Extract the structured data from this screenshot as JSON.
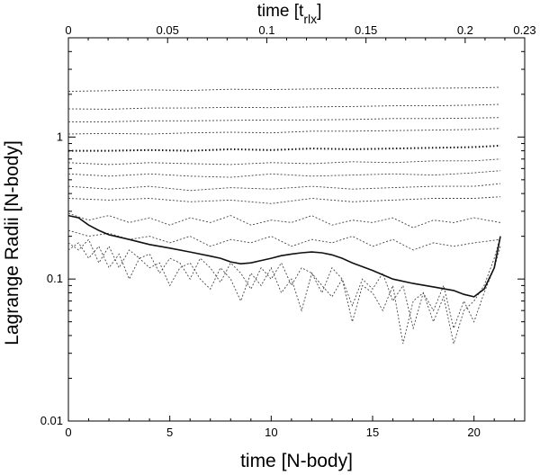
{
  "chart_data": {
    "type": "line",
    "title": "",
    "xlabel": "time [N-body]",
    "x2label_main": "time [t",
    "x2label_sub": "rlx",
    "x2label_close": "]",
    "ylabel": "Lagrange Radii [N-body]",
    "xlim": [
      0,
      22.5
    ],
    "ylim": [
      0.01,
      5
    ],
    "yscale": "log",
    "x_ticks": [
      0,
      5,
      10,
      15,
      20
    ],
    "x_tick_labels": [
      "0",
      "5",
      "10",
      "15",
      "20"
    ],
    "x2_ticks": [
      0,
      0.05,
      0.1,
      0.15,
      0.2,
      0.23
    ],
    "x2_tick_labels": [
      "0",
      "0.05",
      "0.1",
      "0.15",
      "0.2",
      "0.23"
    ],
    "x2_max": 0.23,
    "y_ticks": [
      0.01,
      0.1,
      1
    ],
    "y_tick_labels": [
      "0.01",
      "0.1",
      "1"
    ],
    "grid": false,
    "legend": "none",
    "series": [
      {
        "style": "dotted",
        "x": [
          0,
          2,
          4,
          6,
          8,
          10,
          12,
          14,
          16,
          18,
          20,
          21.3
        ],
        "y": [
          2.1,
          2.12,
          2.15,
          2.13,
          2.17,
          2.16,
          2.18,
          2.2,
          2.19,
          2.21,
          2.22,
          2.24
        ]
      },
      {
        "style": "dotted",
        "x": [
          0,
          2,
          4,
          6,
          8,
          10,
          12,
          14,
          16,
          18,
          20,
          21.3
        ],
        "y": [
          1.58,
          1.57,
          1.6,
          1.6,
          1.62,
          1.61,
          1.63,
          1.64,
          1.66,
          1.66,
          1.68,
          1.7
        ]
      },
      {
        "style": "dotted",
        "x": [
          0,
          2,
          4,
          6,
          8,
          10,
          12,
          14,
          16,
          18,
          20,
          21.3
        ],
        "y": [
          1.28,
          1.28,
          1.3,
          1.3,
          1.31,
          1.32,
          1.32,
          1.33,
          1.35,
          1.35,
          1.36,
          1.37
        ]
      },
      {
        "style": "dotted",
        "x": [
          0,
          2,
          4,
          6,
          8,
          10,
          12,
          14,
          16,
          18,
          20,
          21.3
        ],
        "y": [
          1.05,
          1.06,
          1.05,
          1.07,
          1.08,
          1.07,
          1.1,
          1.1,
          1.11,
          1.12,
          1.13,
          1.15
        ]
      },
      {
        "style": "bold-dotted",
        "x": [
          0,
          2,
          4,
          6,
          8,
          10,
          12,
          14,
          16,
          18,
          20,
          21.3
        ],
        "y": [
          0.8,
          0.8,
          0.81,
          0.8,
          0.82,
          0.81,
          0.83,
          0.82,
          0.83,
          0.84,
          0.85,
          0.87
        ]
      },
      {
        "style": "dotted",
        "x": [
          0,
          2,
          4,
          6,
          8,
          10,
          12,
          14,
          16,
          18,
          20,
          21.3
        ],
        "y": [
          0.66,
          0.64,
          0.66,
          0.65,
          0.64,
          0.66,
          0.65,
          0.67,
          0.66,
          0.68,
          0.68,
          0.7
        ]
      },
      {
        "style": "dotted",
        "x": [
          0,
          2,
          4,
          6,
          8,
          10,
          12,
          14,
          16,
          18,
          20,
          21.3
        ],
        "y": [
          0.55,
          0.53,
          0.55,
          0.53,
          0.52,
          0.55,
          0.53,
          0.54,
          0.55,
          0.54,
          0.56,
          0.58
        ]
      },
      {
        "style": "dotted",
        "x": [
          0,
          2,
          4,
          6,
          8,
          10,
          12,
          14,
          16,
          18,
          20,
          21.3
        ],
        "y": [
          0.45,
          0.43,
          0.45,
          0.42,
          0.44,
          0.43,
          0.45,
          0.43,
          0.44,
          0.45,
          0.45,
          0.47
        ]
      },
      {
        "style": "dotted",
        "x": [
          0,
          2,
          4,
          6,
          8,
          10,
          12,
          14,
          16,
          18,
          20,
          21.3
        ],
        "y": [
          0.37,
          0.36,
          0.37,
          0.35,
          0.36,
          0.34,
          0.37,
          0.35,
          0.36,
          0.37,
          0.37,
          0.38
        ]
      },
      {
        "style": "dotted",
        "x": [
          0,
          1,
          2,
          3,
          4,
          5,
          6,
          7,
          8,
          9,
          10,
          11,
          12,
          13,
          14,
          15,
          16,
          17,
          18,
          19,
          20,
          21.3
        ],
        "y": [
          0.29,
          0.26,
          0.28,
          0.25,
          0.27,
          0.24,
          0.27,
          0.25,
          0.28,
          0.24,
          0.26,
          0.25,
          0.28,
          0.24,
          0.26,
          0.25,
          0.27,
          0.23,
          0.26,
          0.25,
          0.27,
          0.25
        ]
      },
      {
        "style": "dotted",
        "x": [
          0,
          1,
          2,
          3,
          4,
          5,
          6,
          7,
          8,
          9,
          10,
          11,
          12,
          13,
          14,
          15,
          16,
          17,
          18,
          19,
          20,
          21.3
        ],
        "y": [
          0.22,
          0.2,
          0.21,
          0.19,
          0.2,
          0.18,
          0.2,
          0.17,
          0.19,
          0.18,
          0.2,
          0.17,
          0.19,
          0.18,
          0.2,
          0.17,
          0.19,
          0.16,
          0.18,
          0.17,
          0.18,
          0.19
        ]
      },
      {
        "style": "dotted",
        "x": [
          0,
          0.5,
          1,
          1.5,
          2,
          2.5,
          3,
          3.5,
          4,
          4.5,
          5,
          5.5,
          6,
          6.5,
          7,
          7.5,
          8,
          8.5,
          9,
          9.5,
          10,
          10.5,
          11,
          11.5,
          12,
          12.5,
          13,
          13.5,
          14,
          14.5,
          15,
          15.5,
          16,
          16.5,
          17,
          17.5,
          18,
          18.5,
          19,
          19.5,
          20,
          20.5,
          21,
          21.3
        ],
        "y": [
          0.18,
          0.16,
          0.19,
          0.13,
          0.17,
          0.12,
          0.16,
          0.14,
          0.15,
          0.11,
          0.14,
          0.13,
          0.1,
          0.14,
          0.12,
          0.095,
          0.13,
          0.11,
          0.085,
          0.12,
          0.1,
          0.13,
          0.09,
          0.12,
          0.11,
          0.08,
          0.12,
          0.1,
          0.065,
          0.1,
          0.085,
          0.11,
          0.07,
          0.09,
          0.045,
          0.08,
          0.06,
          0.09,
          0.045,
          0.07,
          0.05,
          0.08,
          0.12,
          0.17
        ]
      },
      {
        "style": "dotted",
        "x": [
          0,
          0.5,
          1,
          1.5,
          2,
          2.5,
          3,
          3.5,
          4,
          4.5,
          5,
          5.5,
          6,
          6.5,
          7,
          7.5,
          8,
          8.5,
          9,
          9.5,
          10,
          10.5,
          11,
          11.5,
          12,
          12.5,
          13,
          13.5,
          14,
          14.5,
          15,
          15.5,
          16,
          16.5,
          17,
          17.5,
          18,
          18.5,
          19,
          19.5,
          20,
          20.5,
          21,
          21.3
        ],
        "y": [
          0.16,
          0.18,
          0.14,
          0.17,
          0.12,
          0.15,
          0.1,
          0.14,
          0.12,
          0.13,
          0.09,
          0.12,
          0.13,
          0.1,
          0.085,
          0.12,
          0.1,
          0.07,
          0.11,
          0.09,
          0.12,
          0.08,
          0.1,
          0.06,
          0.11,
          0.09,
          0.075,
          0.1,
          0.05,
          0.09,
          0.08,
          0.06,
          0.09,
          0.035,
          0.07,
          0.08,
          0.05,
          0.075,
          0.035,
          0.06,
          0.07,
          0.09,
          0.14,
          0.2
        ]
      },
      {
        "style": "solid",
        "x": [
          0,
          0.5,
          1,
          1.5,
          2,
          3,
          4,
          5,
          6,
          7,
          7.5,
          8,
          8.5,
          9,
          9.5,
          10,
          10.5,
          11,
          11.5,
          12,
          12.5,
          13,
          13.5,
          14,
          15,
          16,
          17,
          18,
          19,
          19.5,
          20,
          20.5,
          21,
          21.3
        ],
        "y": [
          0.28,
          0.27,
          0.24,
          0.22,
          0.205,
          0.19,
          0.175,
          0.165,
          0.155,
          0.145,
          0.14,
          0.132,
          0.128,
          0.13,
          0.135,
          0.14,
          0.146,
          0.15,
          0.153,
          0.155,
          0.153,
          0.148,
          0.14,
          0.13,
          0.115,
          0.1,
          0.093,
          0.088,
          0.083,
          0.078,
          0.075,
          0.085,
          0.12,
          0.2
        ]
      }
    ]
  }
}
